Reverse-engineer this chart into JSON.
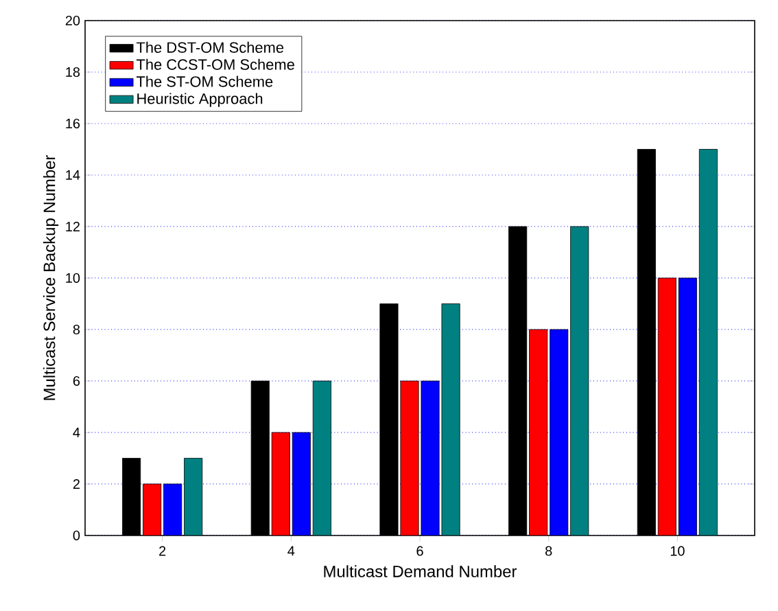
{
  "chart_data": {
    "type": "bar",
    "xlabel": "Multicast Demand Number",
    "ylabel": "Multicast Service Backup Number",
    "categories": [
      "2",
      "4",
      "6",
      "8",
      "10"
    ],
    "series": [
      {
        "name": "The DST-OM Scheme",
        "color": "#000000",
        "values": [
          3,
          6,
          9,
          12,
          15
        ]
      },
      {
        "name": "The CCST-OM Scheme",
        "color": "#ff0000",
        "values": [
          2,
          4,
          6,
          8,
          10
        ]
      },
      {
        "name": "The ST-OM Scheme",
        "color": "#0000ff",
        "values": [
          2,
          4,
          6,
          8,
          10
        ]
      },
      {
        "name": "Heuristic Approach",
        "color": "#008080",
        "values": [
          3,
          6,
          9,
          12,
          15
        ]
      }
    ],
    "ylim": [
      0,
      20
    ],
    "yticks": [
      0,
      2,
      4,
      6,
      8,
      10,
      12,
      14,
      16,
      18,
      20
    ],
    "grid": "y",
    "legend": "top left"
  }
}
